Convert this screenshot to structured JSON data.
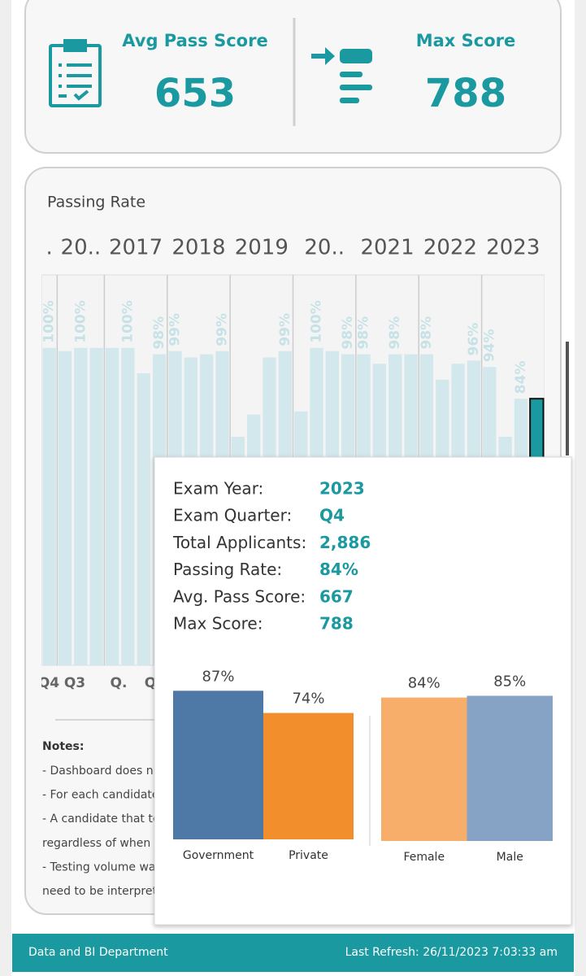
{
  "kpis": [
    {
      "label": "Avg Pass Score",
      "value": 653
    },
    {
      "label": "Max Score",
      "value": 788
    }
  ],
  "passing_rate": {
    "type": "bar",
    "title": "Passing Rate",
    "years": [
      ".",
      "20..",
      "2017",
      "2018",
      "2019",
      "20..",
      "2021",
      "2022",
      "2023"
    ],
    "values": [
      100,
      99,
      100,
      100,
      100,
      100,
      92,
      98,
      99,
      97,
      98,
      99,
      72,
      79,
      97,
      99,
      80,
      100,
      99,
      98,
      98,
      95,
      98,
      98,
      98,
      90,
      95,
      96,
      94,
      72,
      84,
      84
    ],
    "value_labels": [
      "100%",
      null,
      "100%",
      null,
      null,
      "100%",
      null,
      "98%",
      "99%",
      null,
      null,
      "99%",
      null,
      null,
      null,
      "99%",
      null,
      "100%",
      null,
      "98%",
      "98%",
      null,
      "98%",
      null,
      "98%",
      null,
      null,
      "96%",
      "94%",
      null,
      "84%",
      null
    ],
    "quarter_labels": [
      "Q4",
      "Q3",
      "Q.",
      "Q"
    ],
    "ylim": [
      0,
      123
    ],
    "color": "#d3e8ec",
    "highlight": 31,
    "highlight_color": "#1a9aa0"
  },
  "notes": {
    "title": "Notes:",
    "lines": [
      "- Dashboard does no",
      "- For each candidate",
      "- A candidate that to",
      "regardless of when",
      "- Testing volume wa",
      "need to be interpret"
    ]
  },
  "tooltip": {
    "fields": [
      {
        "label": "Exam Year:",
        "value": "2023"
      },
      {
        "label": "Exam Quarter:",
        "value": "Q4"
      },
      {
        "label": "Total Applicants:",
        "value": "2,886"
      },
      {
        "label": "Passing Rate:",
        "value": "84%"
      },
      {
        "label": "Avg. Pass Score:",
        "value": "667"
      },
      {
        "label": "Max Score:",
        "value": "788"
      }
    ],
    "charts": [
      {
        "type": "bar",
        "categories": [
          "Government",
          "Private"
        ],
        "values": [
          87,
          74
        ],
        "value_labels": [
          "87%",
          "74%"
        ],
        "colors": [
          "#4e79a7",
          "#f28e2b"
        ],
        "ylim": [
          0,
          100
        ]
      },
      {
        "type": "bar",
        "categories": [
          "Female",
          "Male"
        ],
        "values": [
          84,
          85
        ],
        "value_labels": [
          "84%",
          "85%"
        ],
        "colors": [
          "#f6ae6a",
          "#86a3c6"
        ],
        "ylim": [
          0,
          100
        ]
      }
    ]
  },
  "footer": {
    "left": "Data and BI Department",
    "right": "Last Refresh: 26/11/2023 7:03:33 am"
  }
}
